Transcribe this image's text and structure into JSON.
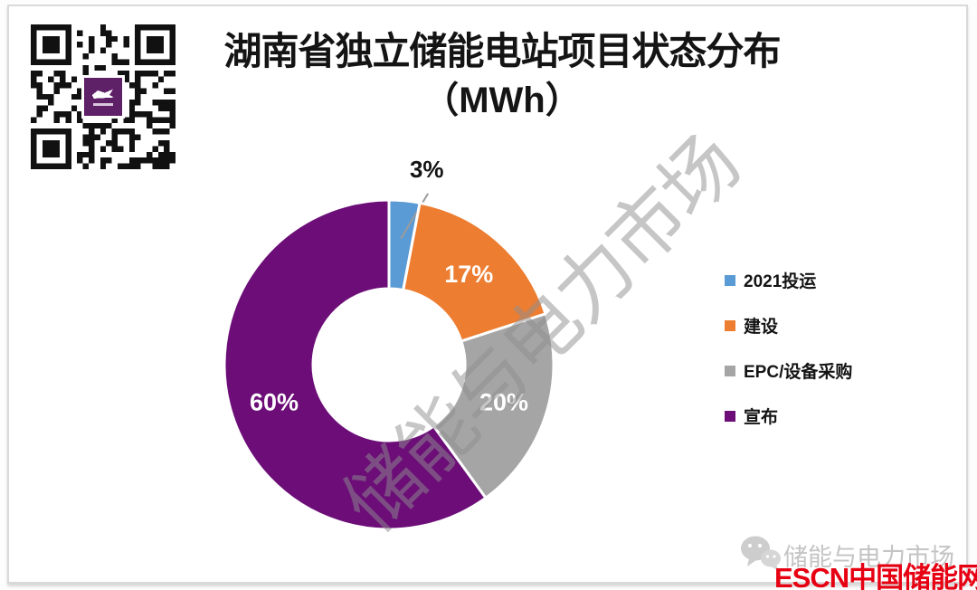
{
  "title": {
    "line1": "湖南省独立储能电站项目状态分布",
    "line2": "（MWh）"
  },
  "chart_data": {
    "type": "pie",
    "subtype": "donut",
    "title": "湖南省独立储能电站项目状态分布（MWh）",
    "unit": "MWh",
    "categories": [
      "2021投运",
      "建设",
      "EPC/设备采购",
      "宣布"
    ],
    "values": [
      3,
      17,
      20,
      60
    ],
    "labels": [
      "3%",
      "17%",
      "20%",
      "60%"
    ],
    "colors": [
      "#5B9BD5",
      "#ED7D31",
      "#A5A5A5",
      "#6C0D78"
    ],
    "start_angle_deg": 0,
    "direction": "clockwise",
    "donut_hole_ratio": 0.46,
    "legend_position": "right",
    "slice_gap_color": "#FFFFFF"
  },
  "watermark": {
    "diagonal_text": "储能与电力市场",
    "footer_text": "储能与电力市场"
  },
  "branding": {
    "logo_text": "ESCN中国储能网",
    "logo_color": "#e60012",
    "qr_center_color": "#5e2066"
  }
}
